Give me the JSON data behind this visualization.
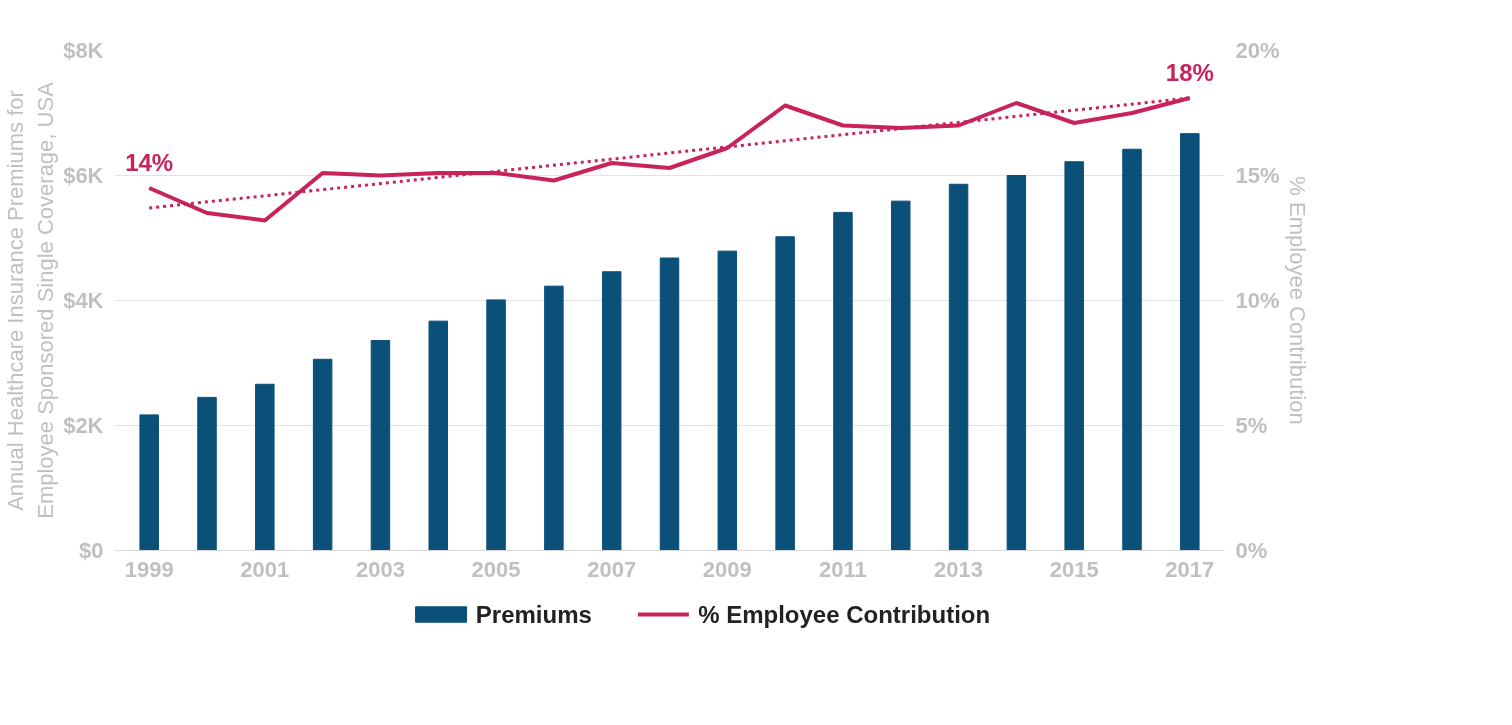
{
  "chart_data": {
    "type": "bar",
    "x": [
      1999,
      2000,
      2001,
      2002,
      2003,
      2004,
      2005,
      2006,
      2007,
      2008,
      2009,
      2010,
      2011,
      2012,
      2013,
      2014,
      2015,
      2016,
      2017
    ],
    "xlim": [
      1998.4,
      2017.6
    ],
    "xticks": [
      1999,
      2001,
      2003,
      2005,
      2007,
      2009,
      2011,
      2013,
      2015,
      2017
    ],
    "ylabel": "Annual Healthcare Insurance Premiums for\nEmployee Sponsored Single Coverage, USA",
    "y2label": "% Employee Contribution",
    "ylim": [
      0,
      8000
    ],
    "yticks": [
      {
        "value": 0,
        "label": "$0"
      },
      {
        "value": 2000,
        "label": "$2K"
      },
      {
        "value": 4000,
        "label": "$4K"
      },
      {
        "value": 6000,
        "label": "$6K"
      },
      {
        "value": 8000,
        "label": "$8K"
      }
    ],
    "y2lim": [
      0,
      20
    ],
    "y2ticks": [
      {
        "value": 0,
        "label": "0%"
      },
      {
        "value": 5,
        "label": "5%"
      },
      {
        "value": 10,
        "label": "10%"
      },
      {
        "value": 15,
        "label": "15%"
      },
      {
        "value": 20,
        "label": "20%"
      }
    ],
    "grid": "y",
    "legend": "bottom",
    "series": [
      {
        "name": "Premiums",
        "color": "#0a5079",
        "values": [
          2170,
          2450,
          2660,
          3060,
          3360,
          3670,
          4010,
          4230,
          4460,
          4680,
          4790,
          5020,
          5410,
          5590,
          5860,
          6000,
          6220,
          6420,
          6670
        ]
      },
      {
        "name": "% Employee Contribution",
        "type": "line",
        "axis": "y2",
        "color": "#c8235a",
        "line_style": "solid",
        "values": [
          14.5,
          13.5,
          13.2,
          15.1,
          15.0,
          15.1,
          15.1,
          14.8,
          15.5,
          15.3,
          16.1,
          17.8,
          17.0,
          16.9,
          17.0,
          17.9,
          17.1,
          17.5,
          18.1
        ],
        "value_labels": [
          "14%",
          null,
          null,
          null,
          null,
          null,
          null,
          null,
          null,
          null,
          null,
          null,
          null,
          null,
          null,
          null,
          null,
          null,
          "18%"
        ]
      },
      {
        "type": "line",
        "axis": "y2",
        "color": "#c8235a",
        "line_style": "dotted",
        "x": [
          1999,
          2017
        ],
        "values": [
          13.7,
          18.1
        ]
      }
    ]
  }
}
